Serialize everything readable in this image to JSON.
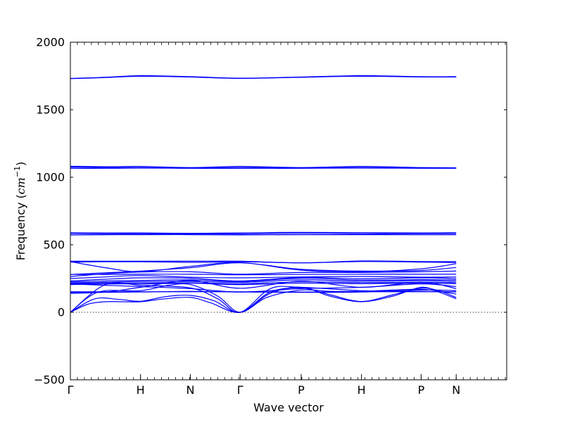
{
  "chart_data": {
    "type": "line",
    "title": "",
    "xlabel": "Wave vector",
    "ylabel": "Frequency",
    "ylabel_unit": "cm",
    "ylabel_unit_exponent": "−1",
    "ylim": [
      -500,
      2000
    ],
    "yticks": [
      -500,
      0,
      500,
      1000,
      1500,
      2000
    ],
    "ytick_labels": [
      "−500",
      "0",
      "500",
      "1000",
      "1500",
      "2000"
    ],
    "xlim": [
      0,
      6.22
    ],
    "high_symmetry_points": [
      {
        "label": "Γ",
        "x": 0.0
      },
      {
        "label": "H",
        "x": 1.0
      },
      {
        "label": "N",
        "x": 1.71
      },
      {
        "label": "Γ",
        "x": 2.42
      },
      {
        "label": "P",
        "x": 3.29
      },
      {
        "label": "H",
        "x": 4.15
      },
      {
        "label": "P",
        "x": 5.0
      },
      {
        "label": "N",
        "x": 5.5
      }
    ],
    "minor_tick_step": 0.1,
    "zero_line": {
      "y": 0,
      "style": "dotted"
    },
    "grid": false,
    "legend": "none",
    "line_color": "#0000ff",
    "series": [
      {
        "points": [
          [
            0,
            1732
          ],
          [
            0.5,
            1740
          ],
          [
            1.0,
            1752
          ],
          [
            1.71,
            1745
          ],
          [
            2.42,
            1734
          ],
          [
            3.29,
            1742
          ],
          [
            4.15,
            1752
          ],
          [
            5.0,
            1745
          ],
          [
            5.5,
            1745
          ]
        ]
      },
      {
        "points": [
          [
            0,
            1730
          ],
          [
            0.5,
            1738
          ],
          [
            1.0,
            1748
          ],
          [
            1.71,
            1742
          ],
          [
            2.42,
            1732
          ],
          [
            3.29,
            1740
          ],
          [
            4.15,
            1748
          ],
          [
            5.0,
            1742
          ],
          [
            5.5,
            1742
          ]
        ]
      },
      {
        "points": [
          [
            0,
            1082
          ],
          [
            0.5,
            1078
          ],
          [
            1.0,
            1080
          ],
          [
            1.71,
            1072
          ],
          [
            2.42,
            1080
          ],
          [
            3.29,
            1072
          ],
          [
            4.15,
            1080
          ],
          [
            5.0,
            1072
          ],
          [
            5.5,
            1070
          ]
        ]
      },
      {
        "points": [
          [
            0,
            1075
          ],
          [
            0.5,
            1072
          ],
          [
            1.0,
            1072
          ],
          [
            1.71,
            1068
          ],
          [
            2.42,
            1072
          ],
          [
            3.29,
            1070
          ],
          [
            4.15,
            1072
          ],
          [
            5.0,
            1068
          ],
          [
            5.5,
            1068
          ]
        ]
      },
      {
        "points": [
          [
            0,
            1066
          ],
          [
            0.5,
            1066
          ],
          [
            1.0,
            1068
          ],
          [
            1.71,
            1066
          ],
          [
            2.42,
            1066
          ],
          [
            3.29,
            1066
          ],
          [
            4.15,
            1068
          ],
          [
            5.0,
            1066
          ],
          [
            5.5,
            1066
          ]
        ]
      },
      {
        "points": [
          [
            0,
            590
          ],
          [
            0.5,
            588
          ],
          [
            1.0,
            588
          ],
          [
            1.71,
            585
          ],
          [
            2.42,
            588
          ],
          [
            3.29,
            592
          ],
          [
            4.15,
            590
          ],
          [
            5.0,
            588
          ],
          [
            5.5,
            590
          ]
        ]
      },
      {
        "points": [
          [
            0,
            582
          ],
          [
            0.5,
            580
          ],
          [
            1.0,
            582
          ],
          [
            1.71,
            580
          ],
          [
            2.42,
            580
          ],
          [
            3.29,
            585
          ],
          [
            4.15,
            582
          ],
          [
            5.0,
            582
          ],
          [
            5.5,
            582
          ]
        ]
      },
      {
        "points": [
          [
            0,
            572
          ],
          [
            0.5,
            574
          ],
          [
            1.0,
            575
          ],
          [
            1.71,
            575
          ],
          [
            2.42,
            573
          ],
          [
            3.29,
            575
          ],
          [
            4.15,
            575
          ],
          [
            5.0,
            574
          ],
          [
            5.5,
            574
          ]
        ]
      },
      {
        "points": [
          [
            0,
            378
          ],
          [
            0.5,
            378
          ],
          [
            1.0,
            378
          ],
          [
            1.71,
            378
          ],
          [
            2.42,
            378
          ],
          [
            3.29,
            366
          ],
          [
            4.15,
            380
          ],
          [
            5.0,
            376
          ],
          [
            5.5,
            375
          ]
        ]
      },
      {
        "points": [
          [
            0,
            372
          ],
          [
            0.5,
            374
          ],
          [
            1.0,
            374
          ],
          [
            1.71,
            370
          ],
          [
            2.42,
            374
          ],
          [
            3.29,
            366
          ],
          [
            4.15,
            376
          ],
          [
            5.0,
            372
          ],
          [
            5.5,
            368
          ]
        ]
      },
      {
        "points": [
          [
            0,
            375
          ],
          [
            0.5,
            330
          ],
          [
            1.0,
            300
          ],
          [
            1.71,
            340
          ],
          [
            2.42,
            368
          ],
          [
            3.29,
            312
          ],
          [
            4.15,
            300
          ],
          [
            5.0,
            322
          ],
          [
            5.5,
            360
          ]
        ]
      },
      {
        "points": [
          [
            0,
            280
          ],
          [
            0.5,
            292
          ],
          [
            1.0,
            305
          ],
          [
            1.71,
            330
          ],
          [
            2.42,
            366
          ],
          [
            3.29,
            318
          ],
          [
            4.15,
            305
          ],
          [
            5.0,
            310
          ],
          [
            5.5,
            332
          ]
        ]
      },
      {
        "points": [
          [
            0,
            265
          ],
          [
            0.5,
            285
          ],
          [
            1.0,
            298
          ],
          [
            1.71,
            300
          ],
          [
            2.42,
            282
          ],
          [
            3.29,
            295
          ],
          [
            4.15,
            295
          ],
          [
            5.0,
            300
          ],
          [
            5.5,
            305
          ]
        ]
      },
      {
        "points": [
          [
            0,
            280
          ],
          [
            0.5,
            280
          ],
          [
            1.0,
            282
          ],
          [
            1.71,
            282
          ],
          [
            2.42,
            278
          ],
          [
            3.29,
            280
          ],
          [
            4.15,
            282
          ],
          [
            5.0,
            282
          ],
          [
            5.5,
            282
          ]
        ]
      },
      {
        "points": [
          [
            0,
            250
          ],
          [
            0.5,
            262
          ],
          [
            1.0,
            272
          ],
          [
            1.71,
            260
          ],
          [
            2.42,
            255
          ],
          [
            3.29,
            262
          ],
          [
            4.15,
            265
          ],
          [
            5.0,
            260
          ],
          [
            5.5,
            262
          ]
        ]
      },
      {
        "points": [
          [
            0,
            232
          ],
          [
            0.5,
            245
          ],
          [
            1.0,
            255
          ],
          [
            1.71,
            252
          ],
          [
            2.42,
            232
          ],
          [
            3.29,
            258
          ],
          [
            4.15,
            248
          ],
          [
            5.0,
            255
          ],
          [
            5.5,
            250
          ]
        ]
      },
      {
        "points": [
          [
            0,
            225
          ],
          [
            0.5,
            232
          ],
          [
            1.0,
            236
          ],
          [
            1.71,
            240
          ],
          [
            2.42,
            228
          ],
          [
            3.29,
            252
          ],
          [
            4.15,
            238
          ],
          [
            5.0,
            242
          ],
          [
            5.5,
            240
          ]
        ]
      },
      {
        "points": [
          [
            0,
            218
          ],
          [
            0.5,
            222
          ],
          [
            1.0,
            228
          ],
          [
            1.71,
            228
          ],
          [
            2.42,
            222
          ],
          [
            3.29,
            240
          ],
          [
            4.15,
            230
          ],
          [
            5.0,
            234
          ],
          [
            5.5,
            230
          ]
        ]
      },
      {
        "points": [
          [
            0,
            212
          ],
          [
            0.5,
            215
          ],
          [
            1.0,
            218
          ],
          [
            1.71,
            218
          ],
          [
            2.42,
            212
          ],
          [
            3.29,
            225
          ],
          [
            4.15,
            220
          ],
          [
            5.0,
            222
          ],
          [
            5.5,
            220
          ]
        ]
      },
      {
        "points": [
          [
            0,
            205
          ],
          [
            0.5,
            210
          ],
          [
            1.0,
            210
          ],
          [
            1.71,
            215
          ],
          [
            2.42,
            205
          ],
          [
            3.29,
            215
          ],
          [
            4.15,
            212
          ],
          [
            5.0,
            215
          ],
          [
            5.5,
            212
          ]
        ]
      },
      {
        "points": [
          [
            0,
            152
          ],
          [
            0.5,
            152
          ],
          [
            1.0,
            152
          ],
          [
            1.71,
            152
          ],
          [
            2.42,
            152
          ],
          [
            3.29,
            150
          ],
          [
            4.15,
            152
          ],
          [
            5.0,
            152
          ],
          [
            5.5,
            152
          ]
        ]
      },
      {
        "points": [
          [
            0,
            148
          ],
          [
            0.5,
            148
          ],
          [
            1.0,
            150
          ],
          [
            1.71,
            155
          ],
          [
            2.42,
            150
          ],
          [
            3.29,
            148
          ],
          [
            4.15,
            150
          ],
          [
            5.0,
            165
          ],
          [
            5.5,
            160
          ]
        ]
      },
      {
        "points": [
          [
            0,
            140
          ],
          [
            0.5,
            150
          ],
          [
            1.0,
            185
          ],
          [
            1.71,
            235
          ],
          [
            2.42,
            178
          ],
          [
            3.29,
            230
          ],
          [
            4.15,
            185
          ],
          [
            5.0,
            222
          ],
          [
            5.5,
            175
          ]
        ]
      },
      {
        "points": [
          [
            0,
            210
          ],
          [
            0.5,
            200
          ],
          [
            1.0,
            190
          ],
          [
            1.71,
            175
          ],
          [
            2.42,
            150
          ],
          [
            3.29,
            175
          ],
          [
            4.15,
            185
          ],
          [
            5.0,
            210
          ],
          [
            5.5,
            190
          ]
        ]
      },
      {
        "points": [
          [
            0,
            0
          ],
          [
            0.25,
            60
          ],
          [
            0.5,
            78
          ],
          [
            0.75,
            78
          ],
          [
            1.0,
            78
          ],
          [
            1.35,
            100
          ],
          [
            1.71,
            110
          ],
          [
            2.0,
            70
          ],
          [
            2.42,
            0
          ],
          [
            2.85,
            140
          ],
          [
            3.29,
            185
          ],
          [
            3.7,
            120
          ],
          [
            4.15,
            78
          ],
          [
            4.6,
            120
          ],
          [
            5.0,
            185
          ],
          [
            5.25,
            150
          ],
          [
            5.5,
            100
          ]
        ]
      },
      {
        "points": [
          [
            0,
            0
          ],
          [
            0.35,
            100
          ],
          [
            0.7,
            95
          ],
          [
            1.0,
            82
          ],
          [
            1.35,
            115
          ],
          [
            1.71,
            125
          ],
          [
            2.05,
            85
          ],
          [
            2.42,
            0
          ],
          [
            2.85,
            150
          ],
          [
            3.29,
            180
          ],
          [
            3.7,
            130
          ],
          [
            4.15,
            80
          ],
          [
            4.6,
            130
          ],
          [
            5.0,
            178
          ],
          [
            5.25,
            160
          ],
          [
            5.5,
            110
          ]
        ]
      },
      {
        "points": [
          [
            0,
            0
          ],
          [
            0.5,
            205
          ],
          [
            1.0,
            200
          ],
          [
            1.71,
            180
          ],
          [
            2.1,
            100
          ],
          [
            2.42,
            0
          ],
          [
            2.85,
            175
          ],
          [
            3.29,
            185
          ],
          [
            4.15,
            160
          ],
          [
            5.0,
            155
          ],
          [
            5.5,
            150
          ]
        ]
      },
      {
        "points": [
          [
            0,
            0
          ],
          [
            0.4,
            150
          ],
          [
            1.0,
            160
          ],
          [
            1.4,
            200
          ],
          [
            1.71,
            205
          ],
          [
            2.1,
            120
          ],
          [
            2.42,
            0
          ],
          [
            2.8,
            110
          ],
          [
            3.29,
            165
          ],
          [
            3.7,
            155
          ],
          [
            4.15,
            155
          ],
          [
            5.0,
            170
          ],
          [
            5.5,
            135
          ]
        ]
      }
    ]
  }
}
